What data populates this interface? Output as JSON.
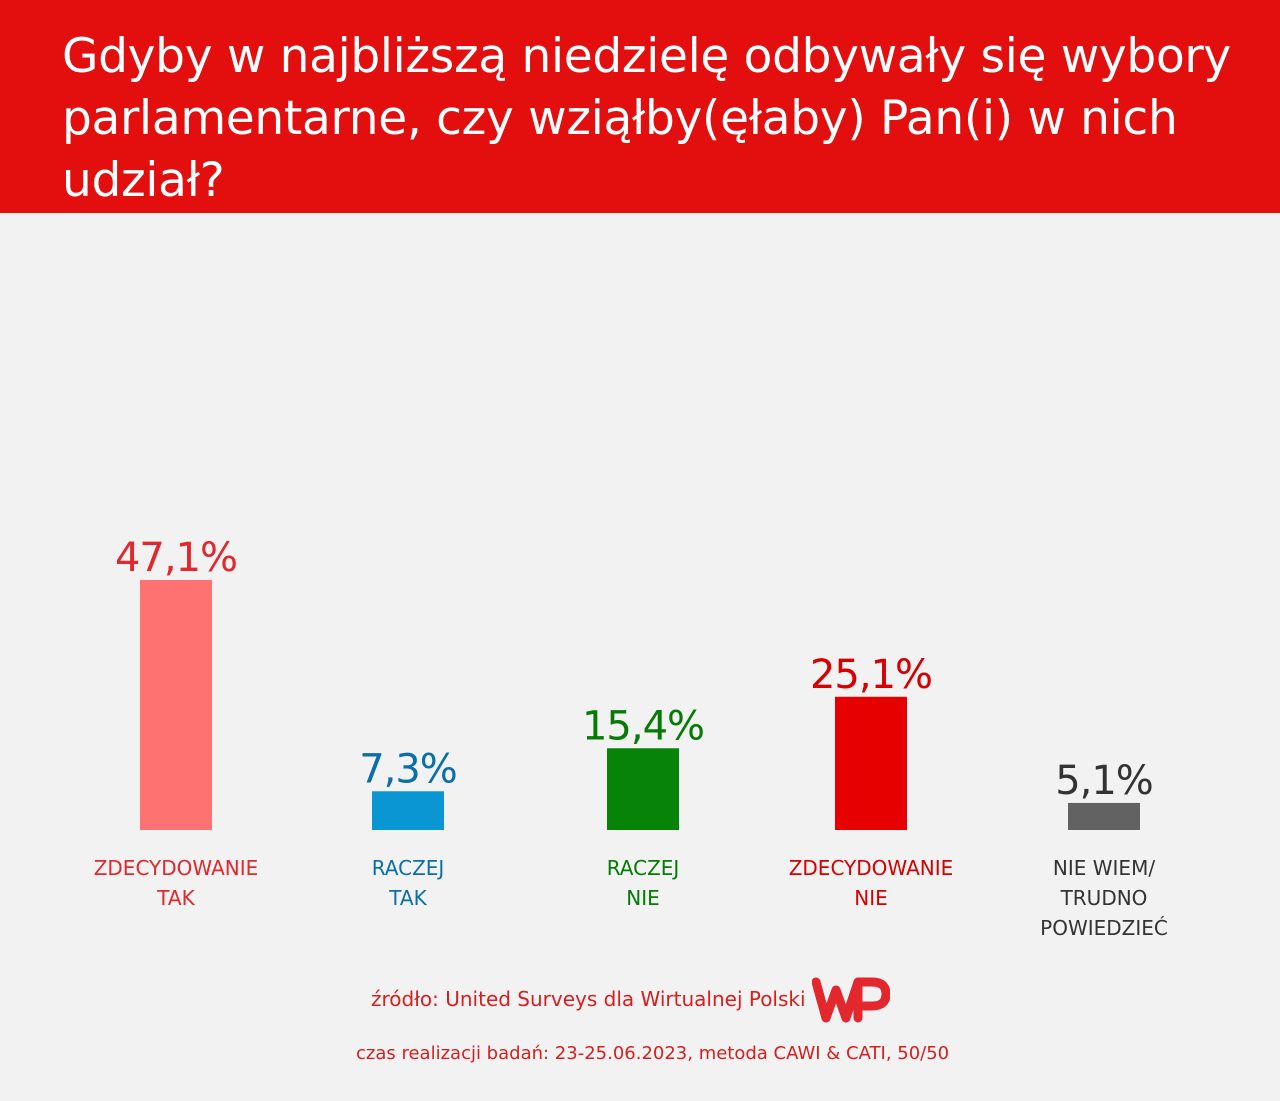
{
  "header": {
    "title": "Gdyby w najbliższą niedzielę odbywały się wybory parlamentarne, czy wziąłby(ęłaby) Pan(i) w nich udział?"
  },
  "chart_data": {
    "type": "bar",
    "categories": [
      [
        "ZDECYDOWANIE",
        "TAK"
      ],
      [
        "RACZEJ",
        "TAK"
      ],
      [
        "RACZEJ",
        "NIE"
      ],
      [
        "ZDECYDOWANIE",
        "NIE"
      ],
      [
        "NIE WIEM/",
        "TRUDNO",
        "POWIEDZIEĆ"
      ]
    ],
    "values": [
      47.1,
      7.3,
      15.4,
      25.1,
      5.1
    ],
    "value_labels": [
      "47,1%",
      "7,3%",
      "15,4%",
      "25,1%",
      "5,1%"
    ],
    "bar_colors": [
      "#ff7272",
      "#0a96d2",
      "#078407",
      "#e60000",
      "#626262"
    ],
    "label_colors": [
      "#e2282c",
      "#0a6fa8",
      "#057a05",
      "#d60000",
      "#333333"
    ],
    "title": "",
    "xlabel": "",
    "ylabel": "",
    "ylim": [
      0,
      47.1
    ],
    "grid": false,
    "legend": "none"
  },
  "footer": {
    "source": "źródło: United Surveys dla Wirtualnej Polski",
    "logo": "WP",
    "method": "czas realizacji badań: 23-25.06.2023, metoda CAWI & CATI, 50/50"
  },
  "colors": {
    "header_bg": "#e30f0f",
    "page_bg": "#f2f2f2",
    "accent": "#e2282c"
  }
}
